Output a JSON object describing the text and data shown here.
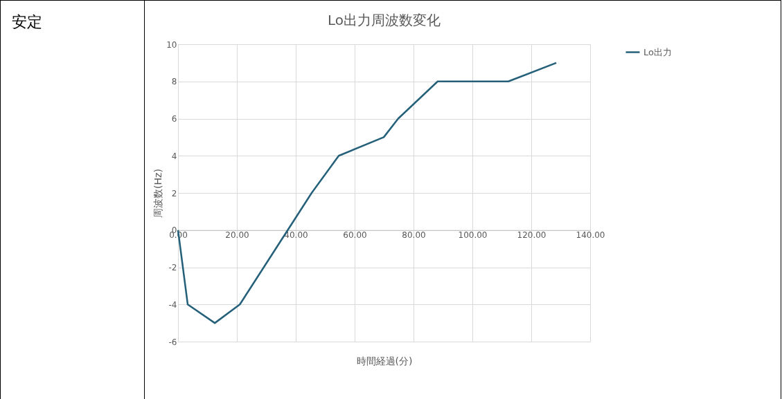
{
  "chart_data": {
    "type": "line",
    "title": "Lo出力周波数変化",
    "xlabel": "時間経過(分)",
    "ylabel": "周波数(Hz)",
    "annotations": [
      "安定"
    ],
    "x": [
      0,
      3.3,
      12.5,
      21,
      45.4,
      54.6,
      69.9,
      74.8,
      88.2,
      112.2,
      128.5
    ],
    "series": [
      {
        "name": "Lo出力",
        "color": "#24607a",
        "values": [
          0,
          -4,
          -5,
          -4,
          2,
          4,
          5,
          6,
          8,
          8,
          9
        ]
      }
    ],
    "xlim": [
      0,
      140
    ],
    "xticks": [
      {
        "value": 0,
        "label": "0.00"
      },
      {
        "value": 20,
        "label": "20.00"
      },
      {
        "value": 40,
        "label": "40.00"
      },
      {
        "value": 60,
        "label": "60.00"
      },
      {
        "value": 80,
        "label": "80.00"
      },
      {
        "value": 100,
        "label": "100.00"
      },
      {
        "value": 120,
        "label": "120.00"
      },
      {
        "value": 140,
        "label": "140.00"
      }
    ],
    "ylim": [
      -6,
      10
    ],
    "yticks": [
      -6,
      -4,
      -2,
      0,
      2,
      4,
      6,
      8,
      10
    ],
    "grid": true,
    "legend": "right",
    "marker": "none",
    "line_style": "solid"
  }
}
